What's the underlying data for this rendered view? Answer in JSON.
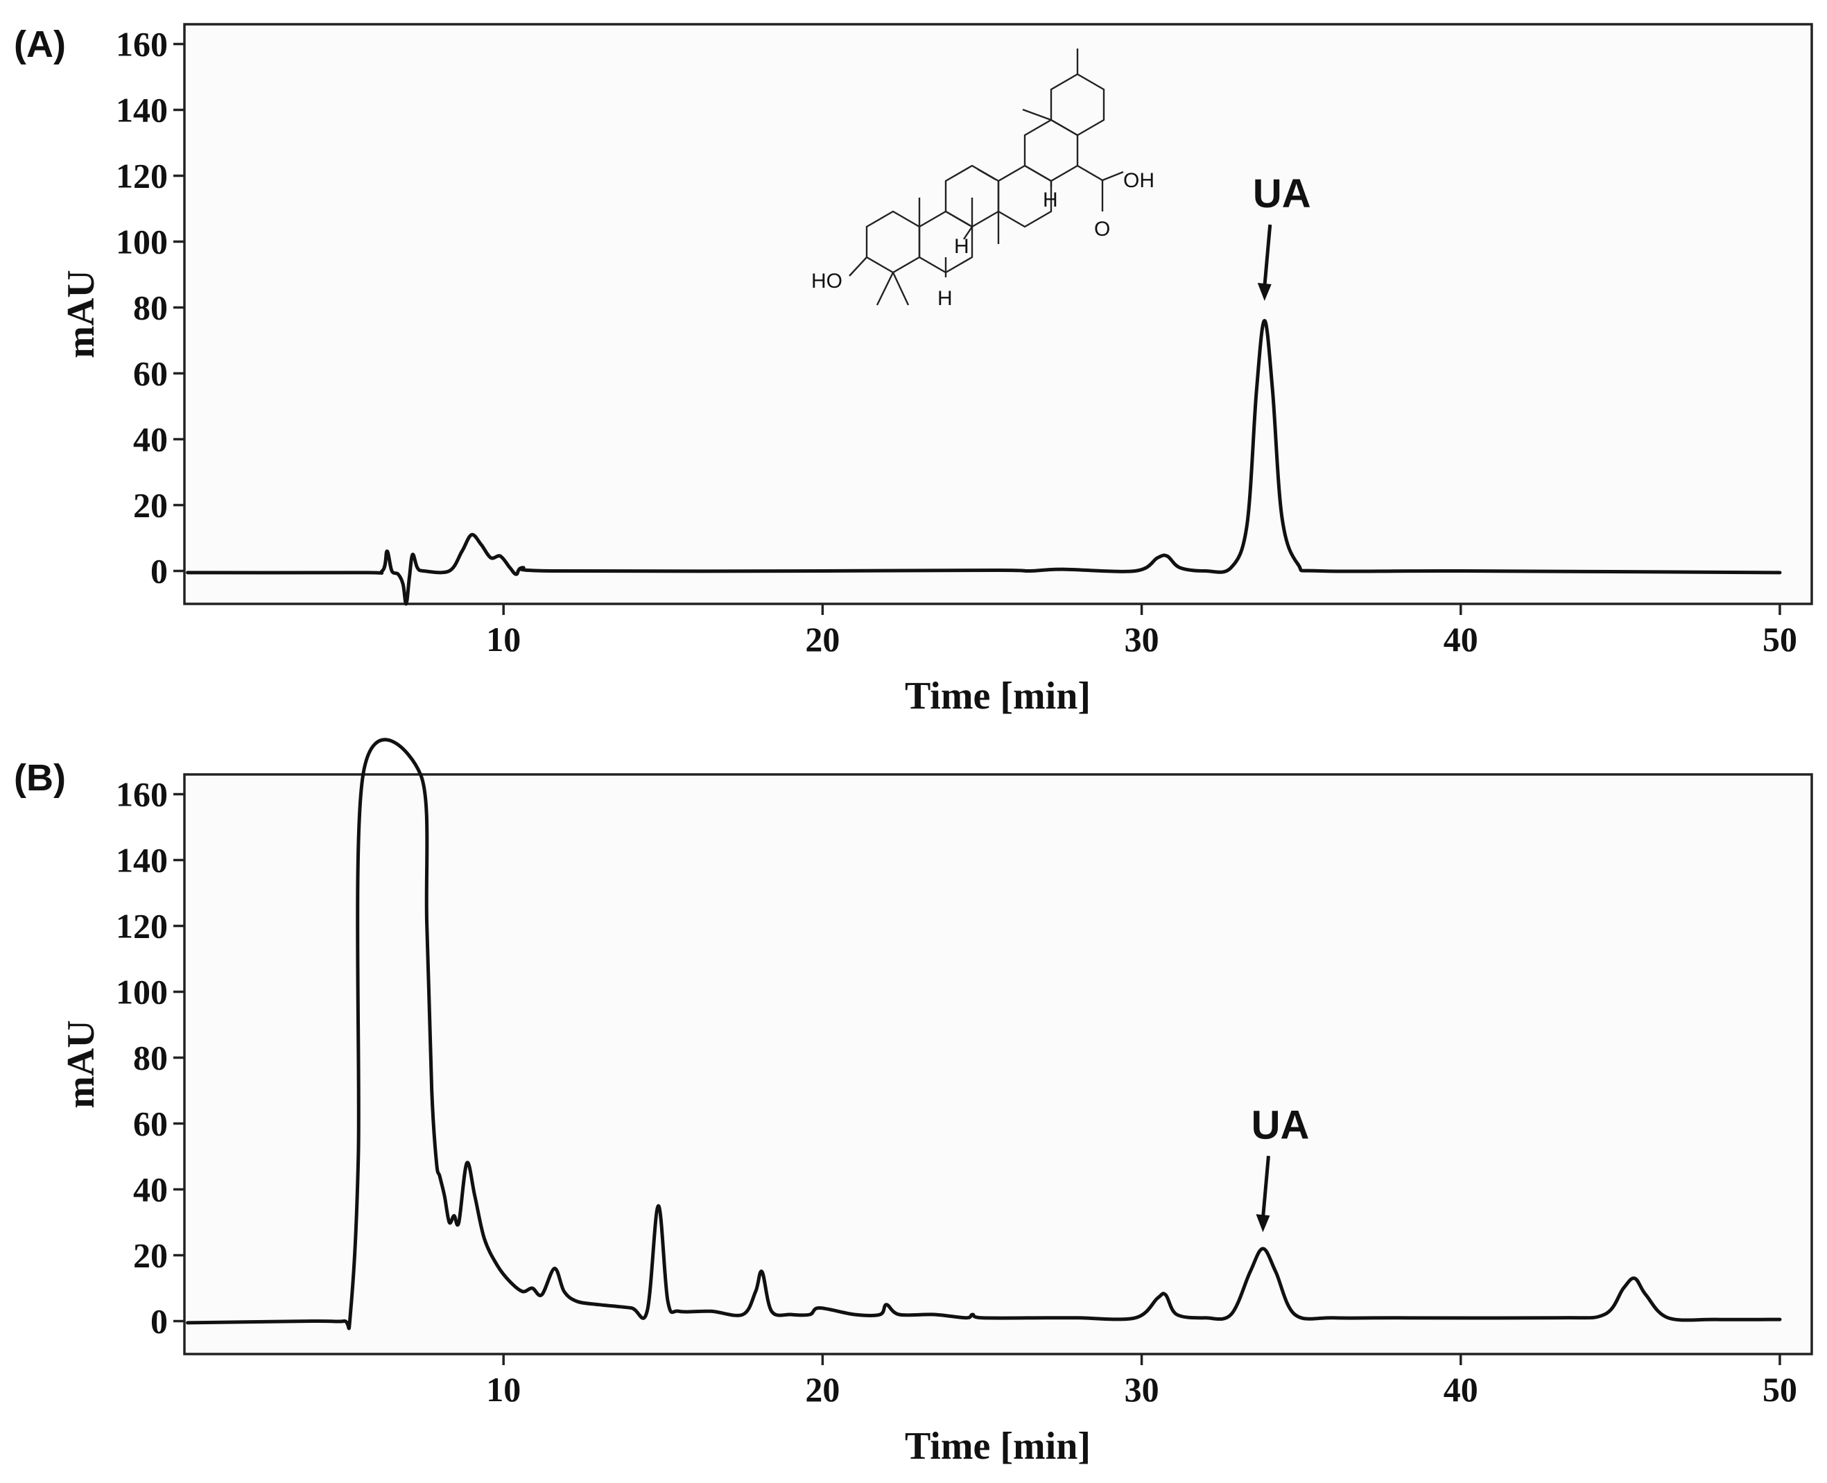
{
  "chart_data": [
    {
      "type": "line",
      "panel_label": "(A)",
      "xlabel": "Time [min]",
      "ylabel": "mAU",
      "xlim": [
        0,
        51
      ],
      "ylim": [
        -10,
        166
      ],
      "xticks": [
        10,
        20,
        30,
        40,
        50
      ],
      "yticks": [
        0,
        20,
        40,
        60,
        80,
        100,
        120,
        140,
        160
      ],
      "grid": false,
      "x": [
        0.1,
        5.5,
        6.2,
        6.35,
        6.5,
        6.7,
        6.85,
        6.95,
        7.05,
        7.15,
        7.3,
        7.5,
        8.3,
        8.7,
        9.0,
        9.3,
        9.6,
        9.9,
        10.2,
        10.4,
        10.6,
        11.5,
        20,
        25.5,
        26.5,
        27.5,
        29.8,
        30.5,
        30.8,
        31.2,
        32.0,
        32.8,
        33.3,
        33.6,
        33.85,
        34.1,
        34.4,
        34.9,
        35.6,
        40,
        50
      ],
      "y": [
        -0.5,
        -0.5,
        0,
        6,
        0,
        -1,
        -4,
        -10,
        -2,
        5,
        1,
        0,
        0,
        6,
        11,
        8,
        4,
        4.5,
        1,
        -1,
        1,
        0,
        0,
        0.2,
        0,
        0.5,
        0,
        4,
        4.5,
        1,
        0,
        1,
        14,
        55,
        76,
        55,
        16,
        2,
        0,
        0,
        -0.5
      ],
      "annotations": [
        {
          "text": "UA",
          "x": 33.85,
          "arrow_tip_y": 82
        }
      ],
      "structure_labels": [
        "OH",
        "O",
        "HO",
        "H",
        "H",
        "H"
      ]
    },
    {
      "type": "line",
      "panel_label": "(B)",
      "xlabel": "Time [min]",
      "ylabel": "mAU",
      "xlim": [
        0,
        51
      ],
      "ylim": [
        -10,
        166
      ],
      "xticks": [
        10,
        20,
        30,
        40,
        50
      ],
      "yticks": [
        0,
        20,
        40,
        60,
        80,
        100,
        120,
        140,
        160
      ],
      "grid": false,
      "x": [
        0.1,
        4.0,
        5.0,
        5.2,
        5.45,
        5.6,
        7.4,
        7.6,
        7.75,
        7.9,
        8.0,
        8.15,
        8.3,
        8.45,
        8.6,
        8.85,
        9.1,
        9.4,
        9.8,
        10.2,
        10.6,
        10.9,
        11.2,
        11.6,
        11.9,
        12.3,
        13.0,
        14.0,
        14.5,
        14.85,
        15.15,
        15.5,
        16.5,
        17.5,
        17.9,
        18.1,
        18.4,
        19.0,
        19.6,
        19.9,
        21.0,
        21.8,
        22.0,
        22.4,
        23.5,
        24.5,
        24.7,
        25.0,
        27.0,
        28.0,
        29.8,
        30.5,
        30.75,
        31.1,
        32.0,
        32.8,
        33.4,
        33.8,
        34.2,
        34.8,
        36.0,
        38.0,
        43.0,
        44.5,
        45.1,
        45.45,
        45.8,
        46.5,
        48.0,
        50.0
      ],
      "y": [
        -0.5,
        0,
        0,
        2,
        50,
        166,
        166,
        120,
        70,
        48,
        44,
        38,
        30,
        32,
        30,
        48,
        38,
        25,
        17,
        12,
        9,
        10,
        8,
        16,
        9,
        6,
        5,
        4,
        3,
        35,
        6,
        3,
        3,
        2,
        9,
        15,
        3,
        2,
        2,
        4,
        2,
        2,
        5,
        2,
        2,
        1,
        2,
        1,
        1,
        1,
        1,
        7,
        8,
        2,
        1,
        2,
        15,
        22,
        15,
        2,
        1,
        1,
        1,
        2,
        10,
        13,
        8,
        1,
        0.5,
        0.5
      ],
      "annotations": [
        {
          "text": "UA",
          "x": 33.8,
          "arrow_tip_y": 27
        }
      ]
    }
  ]
}
